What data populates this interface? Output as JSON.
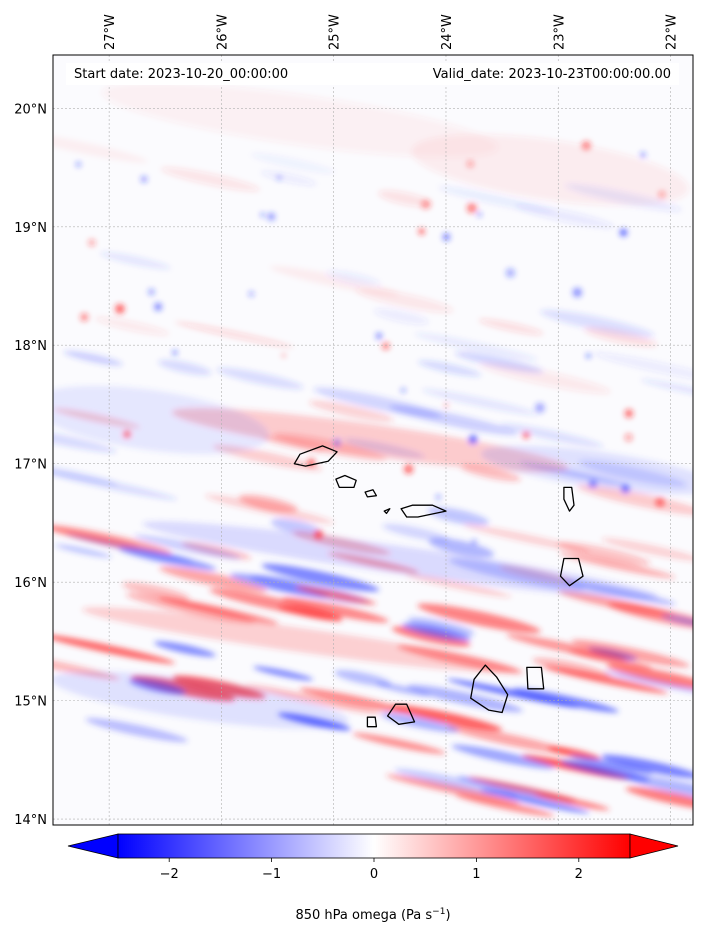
{
  "header": {
    "start_date": "Start date: 2023-10-20_00:00:00",
    "valid_date": "Valid_date: 2023-10-23T00:00:00.00"
  },
  "map": {
    "lon_range": [
      -27.5,
      -21.8
    ],
    "lat_range": [
      13.95,
      20.45
    ],
    "lon_ticks": [
      -27,
      -26,
      -25,
      -24,
      -23,
      -22
    ],
    "lon_labels": [
      "27°W",
      "26°W",
      "25°W",
      "24°W",
      "23°W",
      "22°W"
    ],
    "lat_ticks": [
      14,
      15,
      16,
      17,
      18,
      19,
      20
    ],
    "lat_labels": [
      "14°N",
      "15°N",
      "16°N",
      "17°N",
      "18°N",
      "19°N",
      "20°N"
    ],
    "gridlines": true,
    "coastline_color": "#000000",
    "islands": [
      [
        [
          -25.35,
          17.0
        ],
        [
          -25.3,
          17.08
        ],
        [
          -25.1,
          17.15
        ],
        [
          -24.97,
          17.1
        ],
        [
          -25.05,
          17.02
        ],
        [
          -25.25,
          16.98
        ]
      ],
      [
        [
          -24.98,
          16.87
        ],
        [
          -24.9,
          16.9
        ],
        [
          -24.8,
          16.86
        ],
        [
          -24.82,
          16.8
        ],
        [
          -24.95,
          16.8
        ]
      ],
      [
        [
          -24.4,
          16.62
        ],
        [
          -24.3,
          16.65
        ],
        [
          -24.12,
          16.65
        ],
        [
          -24.0,
          16.6
        ],
        [
          -24.25,
          16.55
        ],
        [
          -24.35,
          16.55
        ]
      ],
      [
        [
          -24.55,
          16.6
        ],
        [
          -24.5,
          16.62
        ],
        [
          -24.53,
          16.58
        ]
      ],
      [
        [
          -24.72,
          16.76
        ],
        [
          -24.65,
          16.78
        ],
        [
          -24.62,
          16.73
        ],
        [
          -24.7,
          16.72
        ]
      ],
      [
        [
          -22.95,
          16.8
        ],
        [
          -22.88,
          16.8
        ],
        [
          -22.86,
          16.65
        ],
        [
          -22.9,
          16.6
        ],
        [
          -22.95,
          16.7
        ]
      ],
      [
        [
          -22.95,
          16.2
        ],
        [
          -22.82,
          16.2
        ],
        [
          -22.78,
          16.05
        ],
        [
          -22.9,
          15.97
        ],
        [
          -22.98,
          16.05
        ]
      ],
      [
        [
          -23.65,
          15.3
        ],
        [
          -23.55,
          15.2
        ],
        [
          -23.45,
          15.05
        ],
        [
          -23.5,
          14.9
        ],
        [
          -23.62,
          14.92
        ],
        [
          -23.78,
          15.02
        ],
        [
          -23.75,
          15.18
        ]
      ],
      [
        [
          -23.28,
          15.28
        ],
        [
          -23.15,
          15.28
        ],
        [
          -23.13,
          15.1
        ],
        [
          -23.27,
          15.1
        ]
      ],
      [
        [
          -24.45,
          14.97
        ],
        [
          -24.35,
          14.97
        ],
        [
          -24.28,
          14.82
        ],
        [
          -24.42,
          14.8
        ],
        [
          -24.52,
          14.87
        ]
      ],
      [
        [
          -24.7,
          14.86
        ],
        [
          -24.63,
          14.86
        ],
        [
          -24.62,
          14.78
        ],
        [
          -24.7,
          14.78
        ]
      ]
    ]
  },
  "colorbar": {
    "label": "850 hPa omega (Pa s",
    "label_exp": "−1",
    "label_close": ")",
    "range": [
      -2.5,
      2.5
    ],
    "tick_values": [
      -2,
      -1,
      0,
      1,
      2
    ],
    "tick_labels": [
      "−2",
      "−1",
      "0",
      "1",
      "2"
    ],
    "colormap": "bwr",
    "colors": {
      "negative": "#0000ff",
      "zero": "#ffffff",
      "positive": "#ff0000"
    }
  }
}
